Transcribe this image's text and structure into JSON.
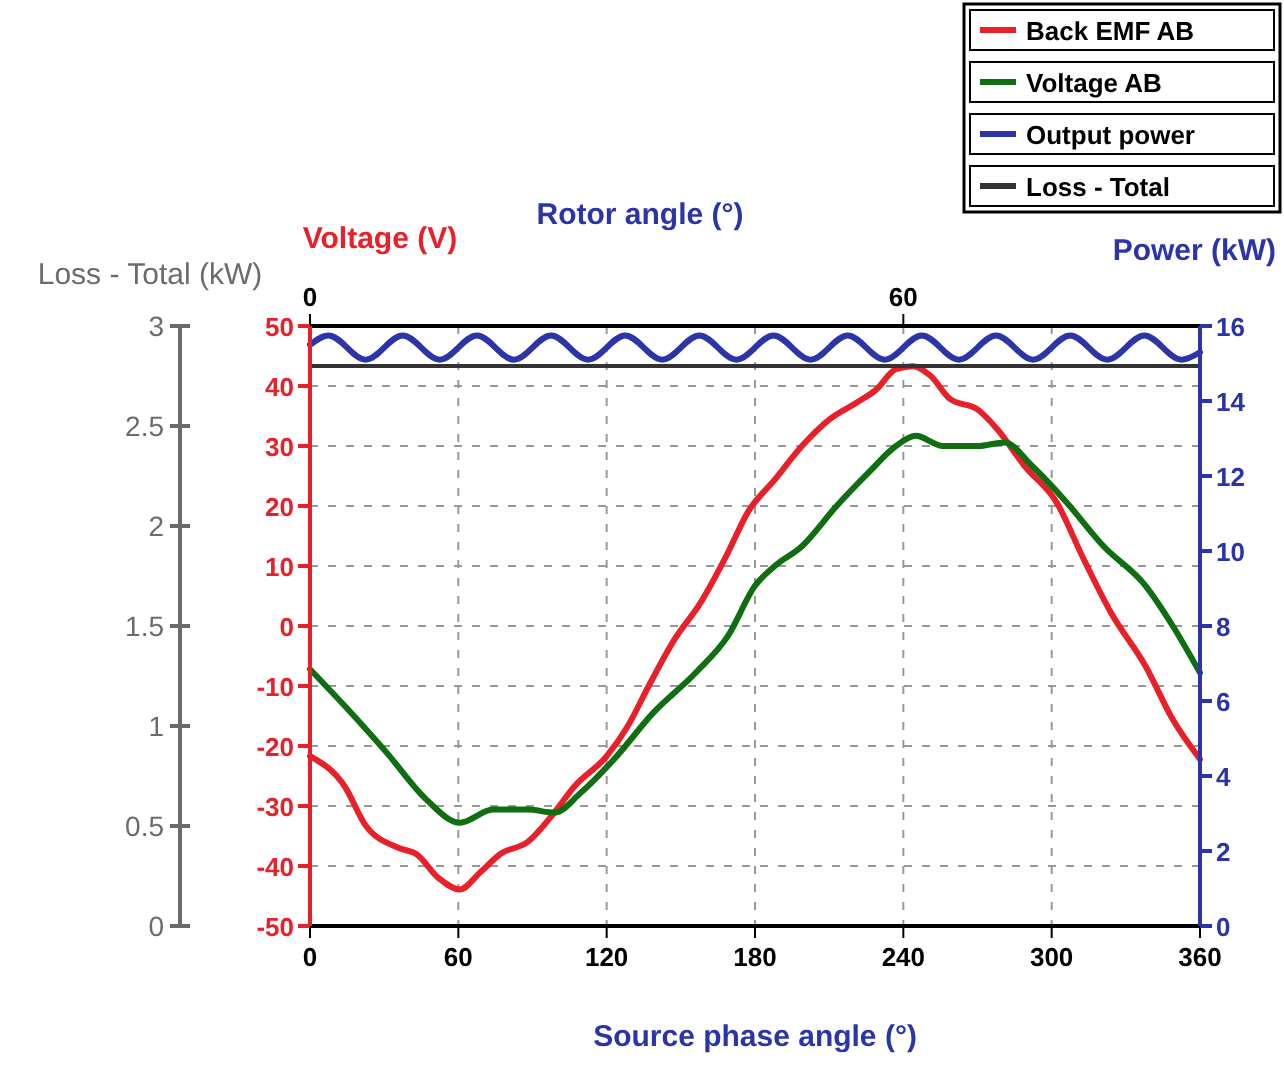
{
  "chart_data": {
    "type": "line",
    "xlabel": "Source phase angle (°)",
    "ylabel": "Voltage (V)",
    "y2label": "Power (kW)",
    "y3label": "Loss - Total (kW)",
    "x2label": "Rotor angle (°)",
    "xlim": [
      0,
      360
    ],
    "xticks": [
      0,
      60,
      120,
      180,
      240,
      300,
      360
    ],
    "x2lim": [
      0,
      90
    ],
    "x2ticks": [
      0,
      60
    ],
    "ylim": [
      -50,
      50
    ],
    "yticks": [
      -50,
      -40,
      -30,
      -20,
      -10,
      0,
      10,
      20,
      30,
      40,
      50
    ],
    "y2lim": [
      0,
      16
    ],
    "y2ticks": [
      0,
      2,
      4,
      6,
      8,
      10,
      12,
      14,
      16
    ],
    "y3lim": [
      0,
      3
    ],
    "y3ticks": [
      0,
      0.5,
      1,
      1.5,
      2,
      2.5,
      3
    ],
    "grid": true,
    "legend": "top right",
    "series": [
      {
        "name": "Back EMF AB",
        "color": "#e8202a",
        "x": [
          0,
          14,
          22.6,
          36,
          43,
          52,
          60.6,
          69,
          77,
          88,
          99,
          107,
          120,
          128.5,
          137,
          147.5,
          158,
          169,
          177,
          188,
          199,
          210,
          221,
          229,
          237,
          244,
          251,
          259,
          270,
          278,
          289,
          302,
          313,
          324,
          338,
          349,
          360
        ],
        "values": [
          -21.7,
          -26.7,
          -33.3,
          -37,
          -38,
          -42,
          -43.9,
          -41,
          -38,
          -36,
          -31,
          -26.7,
          -21.7,
          -16.7,
          -10,
          -2.2,
          3.9,
          12.2,
          18.9,
          24.4,
          30,
          34.4,
          37.2,
          39.4,
          42.8,
          43.3,
          41.7,
          37.8,
          36.1,
          32.8,
          26.7,
          20.6,
          11.1,
          2.2,
          -6.7,
          -15.6,
          -22.2
        ]
      },
      {
        "name": "Voltage AB",
        "color": "#0f6e12",
        "x": [
          0,
          14,
          31,
          47,
          60.6,
          74,
          88,
          99,
          109.5,
          123,
          139,
          156,
          169,
          180,
          188,
          199,
          213,
          226,
          237,
          245,
          256,
          270,
          281,
          292,
          305,
          321,
          338,
          349,
          360
        ],
        "values": [
          -7.2,
          -13.3,
          -21.1,
          -28.9,
          -32.8,
          -30.6,
          -30.6,
          -31.1,
          -27.8,
          -22.2,
          -14.4,
          -7.8,
          -1.7,
          6.7,
          10,
          13.3,
          20,
          25.6,
          30,
          31.7,
          30,
          30,
          30.6,
          26.7,
          21.1,
          13.3,
          6.7,
          0,
          -7.8
        ]
      },
      {
        "name": "Output power",
        "color": "#2b35a8",
        "axis": "y2",
        "x": [
          0,
          7.5,
          22.5,
          37.5,
          52.5,
          67.5,
          82.5,
          97.5,
          112.5,
          127.5,
          142.5,
          157.5,
          172.5,
          187.5,
          202.5,
          217.5,
          232.5,
          247.5,
          262.5,
          277.5,
          292.5,
          307.5,
          322.5,
          337.5,
          352.5,
          360
        ],
        "values": [
          15.5,
          15.75,
          15.1,
          15.75,
          15.1,
          15.75,
          15.1,
          15.75,
          15.1,
          15.75,
          15.1,
          15.75,
          15.1,
          15.75,
          15.1,
          15.75,
          15.1,
          15.75,
          15.1,
          15.75,
          15.1,
          15.75,
          15.1,
          15.75,
          15.1,
          15.3
        ]
      },
      {
        "name": "Loss - Total",
        "color": "#333333",
        "axis": "y3",
        "x": [
          0,
          360
        ],
        "values": [
          2.8,
          2.8
        ]
      }
    ]
  }
}
